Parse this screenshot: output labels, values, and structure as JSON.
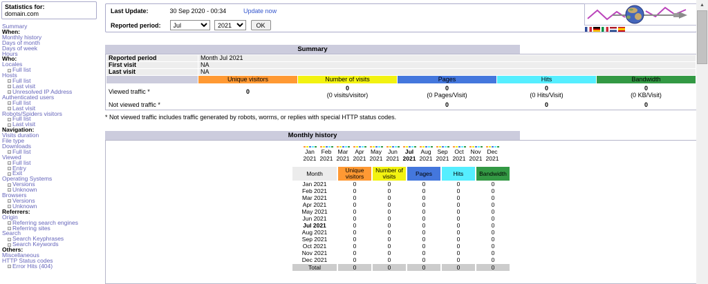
{
  "sidebar": {
    "stats_for_label": "Statistics for:",
    "domain": "domain.com",
    "items": [
      {
        "label": "Summary",
        "type": "link"
      },
      {
        "label": "When:",
        "type": "category"
      },
      {
        "label": "Monthly history",
        "type": "link"
      },
      {
        "label": "Days of month",
        "type": "link"
      },
      {
        "label": "Days of week",
        "type": "link"
      },
      {
        "label": "Hours",
        "type": "link"
      },
      {
        "label": "Who:",
        "type": "category"
      },
      {
        "label": "Locales",
        "type": "link"
      },
      {
        "label": "Full list",
        "type": "sub"
      },
      {
        "label": "Hosts",
        "type": "link"
      },
      {
        "label": "Full list",
        "type": "sub"
      },
      {
        "label": "Last visit",
        "type": "sub"
      },
      {
        "label": "Unresolved IP Address",
        "type": "sub"
      },
      {
        "label": "Authenticated users",
        "type": "link"
      },
      {
        "label": "Full list",
        "type": "sub"
      },
      {
        "label": "Last visit",
        "type": "sub"
      },
      {
        "label": "Robots/Spiders visitors",
        "type": "link"
      },
      {
        "label": "Full list",
        "type": "sub"
      },
      {
        "label": "Last visit",
        "type": "sub"
      },
      {
        "label": "Navigation:",
        "type": "category"
      },
      {
        "label": "Visits duration",
        "type": "link"
      },
      {
        "label": "File type",
        "type": "link"
      },
      {
        "label": "Downloads",
        "type": "link"
      },
      {
        "label": "Full list",
        "type": "sub"
      },
      {
        "label": "Viewed",
        "type": "link"
      },
      {
        "label": "Full list",
        "type": "sub"
      },
      {
        "label": "Entry",
        "type": "sub"
      },
      {
        "label": "Exit",
        "type": "sub"
      },
      {
        "label": "Operating Systems",
        "type": "link"
      },
      {
        "label": "Versions",
        "type": "sub"
      },
      {
        "label": "Unknown",
        "type": "sub"
      },
      {
        "label": "Browsers",
        "type": "link"
      },
      {
        "label": "Versions",
        "type": "sub"
      },
      {
        "label": "Unknown",
        "type": "sub"
      },
      {
        "label": "Referrers:",
        "type": "category"
      },
      {
        "label": "Origin",
        "type": "link"
      },
      {
        "label": "Referring search engines",
        "type": "sub"
      },
      {
        "label": "Referring sites",
        "type": "sub"
      },
      {
        "label": "Search",
        "type": "link"
      },
      {
        "label": "Search Keyphrases",
        "type": "sub"
      },
      {
        "label": "Search Keywords",
        "type": "sub"
      },
      {
        "label": "Others:",
        "type": "category"
      },
      {
        "label": "Miscellaneous",
        "type": "link"
      },
      {
        "label": "HTTP Status codes",
        "type": "link"
      },
      {
        "label": "Error Hits (404)",
        "type": "sub"
      }
    ]
  },
  "header": {
    "last_update_label": "Last Update:",
    "last_update_value": "30 Sep 2020 - 00:34",
    "update_now_label": "Update now",
    "reported_period_label": "Reported period:",
    "period_month": "Jul",
    "period_year": "2021",
    "ok_label": "OK",
    "flags": [
      "france",
      "germany",
      "italy",
      "netherlands",
      "spain"
    ]
  },
  "summary": {
    "title": "Summary",
    "info_rows": [
      {
        "label": "Reported period",
        "value": "Month Jul 2021"
      },
      {
        "label": "First visit",
        "value": "NA"
      },
      {
        "label": "Last visit",
        "value": "NA"
      }
    ],
    "metrics": [
      {
        "label": "Unique visitors",
        "color": "#FF9933"
      },
      {
        "label": "Number of visits",
        "color": "#F2F211"
      },
      {
        "label": "Pages",
        "color": "#4477DD"
      },
      {
        "label": "Hits",
        "color": "#55EEFF"
      },
      {
        "label": "Bandwidth",
        "color": "#339944"
      }
    ],
    "viewed_label": "Viewed traffic *",
    "viewed_cells": [
      {
        "value": "0",
        "sub": ""
      },
      {
        "value": "0",
        "sub": "(0 visits/visitor)"
      },
      {
        "value": "0",
        "sub": "(0 Pages/Visit)"
      },
      {
        "value": "0",
        "sub": "(0 Hits/Visit)"
      },
      {
        "value": "0",
        "sub": "(0 KB/Visit)"
      }
    ],
    "not_viewed_label": "Not viewed traffic *",
    "not_viewed_cells": [
      "0",
      "0",
      "0"
    ],
    "footnote": "* Not viewed traffic includes traffic generated by robots, worms, or replies with special HTTP status codes."
  },
  "monthly": {
    "title": "Monthly history",
    "current_month": "Jul 2021",
    "chart_data": {
      "type": "bar",
      "title": "Monthly history",
      "x": [
        "Jan 2021",
        "Feb 2021",
        "Mar 2021",
        "Apr 2021",
        "May 2021",
        "Jun 2021",
        "Jul 2021",
        "Aug 2021",
        "Sep 2021",
        "Oct 2021",
        "Nov 2021",
        "Dec 2021"
      ],
      "series": [
        {
          "name": "Unique visitors",
          "color": "#FF9933",
          "values": [
            0,
            0,
            0,
            0,
            0,
            0,
            0,
            0,
            0,
            0,
            0,
            0
          ]
        },
        {
          "name": "Number of visits",
          "color": "#F2F211",
          "values": [
            0,
            0,
            0,
            0,
            0,
            0,
            0,
            0,
            0,
            0,
            0,
            0
          ]
        },
        {
          "name": "Pages",
          "color": "#4477DD",
          "values": [
            0,
            0,
            0,
            0,
            0,
            0,
            0,
            0,
            0,
            0,
            0,
            0
          ]
        },
        {
          "name": "Hits",
          "color": "#55EEFF",
          "values": [
            0,
            0,
            0,
            0,
            0,
            0,
            0,
            0,
            0,
            0,
            0,
            0
          ]
        },
        {
          "name": "Bandwidth",
          "color": "#339944",
          "values": [
            0,
            0,
            0,
            0,
            0,
            0,
            0,
            0,
            0,
            0,
            0,
            0
          ]
        }
      ],
      "xlabel": "",
      "ylabel": "",
      "legend": false
    },
    "table": {
      "headers": [
        "Month",
        "Unique visitors",
        "Number of visits",
        "Pages",
        "Hits",
        "Bandwidth"
      ],
      "rows": [
        [
          "Jan 2021",
          "0",
          "0",
          "0",
          "0",
          "0"
        ],
        [
          "Feb 2021",
          "0",
          "0",
          "0",
          "0",
          "0"
        ],
        [
          "Mar 2021",
          "0",
          "0",
          "0",
          "0",
          "0"
        ],
        [
          "Apr 2021",
          "0",
          "0",
          "0",
          "0",
          "0"
        ],
        [
          "May 2021",
          "0",
          "0",
          "0",
          "0",
          "0"
        ],
        [
          "Jun 2021",
          "0",
          "0",
          "0",
          "0",
          "0"
        ],
        [
          "Jul 2021",
          "0",
          "0",
          "0",
          "0",
          "0"
        ],
        [
          "Aug 2021",
          "0",
          "0",
          "0",
          "0",
          "0"
        ],
        [
          "Sep 2021",
          "0",
          "0",
          "0",
          "0",
          "0"
        ],
        [
          "Oct 2021",
          "0",
          "0",
          "0",
          "0",
          "0"
        ],
        [
          "Nov 2021",
          "0",
          "0",
          "0",
          "0",
          "0"
        ],
        [
          "Dec 2021",
          "0",
          "0",
          "0",
          "0",
          "0"
        ]
      ],
      "total_label": "Total",
      "total": [
        "0",
        "0",
        "0",
        "0",
        "0"
      ]
    }
  },
  "colors": {
    "title_bar_bg": "#CCCCDD",
    "box_border": "#A9A9C9",
    "sidebar_link": "#6666BB",
    "action_link": "#3355CC",
    "info_row_bg": "#EDEDED",
    "total_row_bg": "#CCCCCC",
    "logo_zigzag": "#BB44BB"
  }
}
